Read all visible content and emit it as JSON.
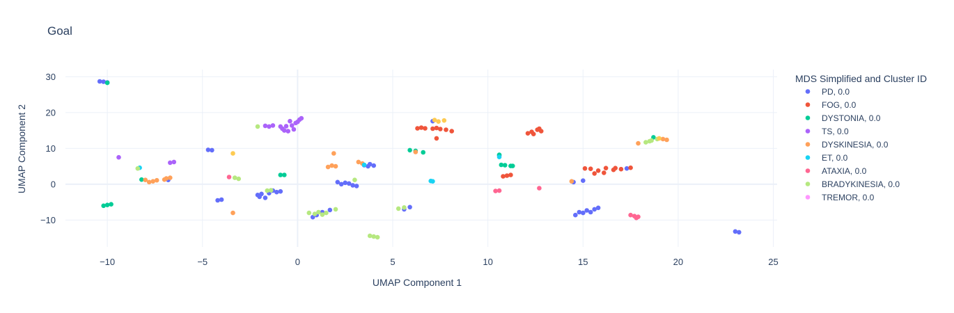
{
  "chart_data": {
    "type": "scatter",
    "title": "Goal",
    "xlabel": "UMAP Component 1",
    "ylabel": "UMAP Component 2",
    "xlim": [
      -12.2,
      25.2
    ],
    "ylim": [
      -17.5,
      32
    ],
    "xticks": [
      -10,
      -5,
      0,
      5,
      10,
      15,
      20,
      25
    ],
    "yticks": [
      -10,
      0,
      10,
      20,
      30
    ],
    "grid": true,
    "legend_title": "MDS Simplified and Cluster ID",
    "legend_position": "right",
    "series": [
      {
        "name": "PD, 0.0",
        "color": "#636efa",
        "points": [
          [
            -10.4,
            28.7
          ],
          [
            -10.2,
            28.6
          ],
          [
            -10.0,
            28.4
          ],
          [
            -4.7,
            9.6
          ],
          [
            -4.5,
            9.5
          ],
          [
            -4.2,
            -4.5
          ],
          [
            -4.0,
            -4.3
          ],
          [
            -2.1,
            -3.0
          ],
          [
            -1.9,
            -2.7
          ],
          [
            -2.0,
            -3.5
          ],
          [
            -1.7,
            -3.8
          ],
          [
            -1.5,
            -2.5
          ],
          [
            -1.3,
            -1.8
          ],
          [
            -1.1,
            -2.2
          ],
          [
            -0.9,
            -2.0
          ],
          [
            -6.8,
            1.2
          ],
          [
            0.8,
            -9.2
          ],
          [
            1.0,
            -8.6
          ],
          [
            1.3,
            -7.8
          ],
          [
            1.7,
            -7.2
          ],
          [
            2.1,
            0.6
          ],
          [
            2.3,
            0.0
          ],
          [
            2.5,
            0.4
          ],
          [
            2.7,
            0.2
          ],
          [
            2.9,
            -0.3
          ],
          [
            3.1,
            -0.5
          ],
          [
            3.5,
            5.3
          ],
          [
            3.7,
            5.0
          ],
          [
            3.8,
            5.6
          ],
          [
            4.0,
            5.2
          ],
          [
            5.6,
            -7.0
          ],
          [
            5.9,
            -6.4
          ],
          [
            7.1,
            17.6
          ],
          [
            10.6,
            8.0
          ],
          [
            14.5,
            0.6
          ],
          [
            15.0,
            1.0
          ],
          [
            14.6,
            -8.6
          ],
          [
            14.8,
            -7.8
          ],
          [
            15.0,
            -8.0
          ],
          [
            15.2,
            -7.3
          ],
          [
            15.4,
            -7.8
          ],
          [
            15.6,
            -7.0
          ],
          [
            15.8,
            -6.6
          ],
          [
            17.3,
            4.4
          ],
          [
            23.0,
            -13.2
          ],
          [
            23.2,
            -13.4
          ]
        ]
      },
      {
        "name": "FOG, 0.0",
        "color": "#ef553b",
        "points": [
          [
            6.3,
            15.6
          ],
          [
            6.5,
            15.8
          ],
          [
            6.7,
            15.6
          ],
          [
            7.1,
            15.5
          ],
          [
            7.3,
            15.7
          ],
          [
            7.5,
            15.4
          ],
          [
            7.8,
            15.2
          ],
          [
            8.1,
            14.8
          ],
          [
            7.3,
            12.8
          ],
          [
            12.1,
            14.2
          ],
          [
            12.3,
            14.6
          ],
          [
            12.4,
            14.0
          ],
          [
            12.6,
            15.2
          ],
          [
            12.8,
            14.8
          ],
          [
            12.7,
            15.5
          ],
          [
            15.1,
            4.4
          ],
          [
            15.4,
            4.3
          ],
          [
            15.6,
            3.0
          ],
          [
            15.8,
            3.8
          ],
          [
            16.1,
            3.2
          ],
          [
            16.2,
            4.5
          ],
          [
            16.6,
            4.0
          ],
          [
            16.7,
            4.5
          ],
          [
            17.0,
            4.2
          ],
          [
            17.5,
            4.6
          ],
          [
            10.8,
            2.2
          ],
          [
            11.0,
            2.4
          ],
          [
            11.2,
            2.6
          ]
        ]
      },
      {
        "name": "DYSTONIA, 0.0",
        "color": "#00cc96",
        "points": [
          [
            -10.0,
            28.3
          ],
          [
            -10.2,
            -6.0
          ],
          [
            -10.0,
            -5.8
          ],
          [
            -9.8,
            -5.6
          ],
          [
            -8.2,
            1.3
          ],
          [
            -0.9,
            2.6
          ],
          [
            -0.7,
            2.6
          ],
          [
            5.9,
            9.5
          ],
          [
            6.2,
            9.3
          ],
          [
            6.6,
            8.9
          ],
          [
            10.6,
            8.2
          ],
          [
            10.7,
            5.4
          ],
          [
            10.9,
            5.3
          ],
          [
            11.2,
            5.1
          ],
          [
            11.3,
            5.1
          ],
          [
            18.7,
            13.1
          ]
        ]
      },
      {
        "name": "TS, 0.0",
        "color": "#ab63fa",
        "points": [
          [
            -9.4,
            7.5
          ],
          [
            -6.7,
            6.0
          ],
          [
            -6.5,
            6.2
          ],
          [
            -1.7,
            16.3
          ],
          [
            -1.5,
            16.1
          ],
          [
            -1.3,
            16.4
          ],
          [
            -0.9,
            16.1
          ],
          [
            -0.8,
            15.5
          ],
          [
            -0.7,
            15.0
          ],
          [
            -0.6,
            16.2
          ],
          [
            -0.5,
            14.8
          ],
          [
            -0.4,
            17.6
          ],
          [
            -0.3,
            16.4
          ],
          [
            -0.2,
            15.3
          ],
          [
            -0.1,
            17.1
          ],
          [
            0.0,
            17.4
          ],
          [
            0.1,
            18.0
          ],
          [
            0.2,
            18.4
          ]
        ]
      },
      {
        "name": "DYSKINESIA, 0.0",
        "color": "#ffa15a",
        "points": [
          [
            -8.0,
            1.2
          ],
          [
            -7.8,
            0.6
          ],
          [
            -7.6,
            0.8
          ],
          [
            -7.4,
            1.1
          ],
          [
            -7.0,
            1.3
          ],
          [
            -6.9,
            1.6
          ],
          [
            -6.7,
            1.8
          ],
          [
            -3.4,
            -8.0
          ],
          [
            1.6,
            4.8
          ],
          [
            1.8,
            5.2
          ],
          [
            2.0,
            5.0
          ],
          [
            1.9,
            8.6
          ],
          [
            3.2,
            6.2
          ],
          [
            3.4,
            5.8
          ],
          [
            6.2,
            9.0
          ],
          [
            14.4,
            0.8
          ],
          [
            17.9,
            11.4
          ],
          [
            19.2,
            12.6
          ],
          [
            19.4,
            12.4
          ]
        ]
      },
      {
        "name": "ET, 0.0",
        "color": "#19d3f3",
        "points": [
          [
            -8.3,
            4.6
          ],
          [
            3.5,
            5.4
          ],
          [
            7.0,
            0.9
          ],
          [
            7.1,
            0.8
          ],
          [
            10.6,
            7.6
          ]
        ]
      },
      {
        "name": "ATAXIA, 0.0",
        "color": "#ff6692",
        "points": [
          [
            -3.6,
            2.0
          ],
          [
            10.4,
            -1.9
          ],
          [
            10.6,
            -1.8
          ],
          [
            12.7,
            -1.1
          ],
          [
            17.5,
            -8.6
          ],
          [
            17.7,
            -8.9
          ],
          [
            17.9,
            -9.1
          ],
          [
            17.8,
            -9.4
          ]
        ]
      },
      {
        "name": "BRADYKINESIA, 0.0",
        "color": "#b6e880",
        "points": [
          [
            -8.4,
            4.4
          ],
          [
            -3.3,
            1.8
          ],
          [
            -3.1,
            1.5
          ],
          [
            -2.1,
            16.1
          ],
          [
            -1.6,
            -1.8
          ],
          [
            -1.4,
            -1.7
          ],
          [
            0.6,
            -8.0
          ],
          [
            0.9,
            -8.3
          ],
          [
            1.1,
            -7.8
          ],
          [
            1.3,
            -8.5
          ],
          [
            1.5,
            -8.0
          ],
          [
            2.0,
            -7.0
          ],
          [
            3.0,
            1.2
          ],
          [
            3.8,
            -14.4
          ],
          [
            4.0,
            -14.6
          ],
          [
            4.2,
            -14.8
          ],
          [
            5.3,
            -6.8
          ],
          [
            5.6,
            -6.5
          ],
          [
            18.3,
            11.7
          ],
          [
            18.5,
            12.0
          ],
          [
            18.6,
            12.2
          ],
          [
            18.9,
            12.6
          ]
        ]
      },
      {
        "name": "TREMOR, 0.0",
        "color": "#fecb52",
        "swatch_color": "#ff97ff",
        "points": [
          [
            -3.4,
            8.6
          ],
          [
            7.2,
            17.9
          ],
          [
            7.4,
            17.5
          ],
          [
            7.7,
            17.8
          ],
          [
            19.0,
            12.8
          ]
        ]
      }
    ]
  }
}
